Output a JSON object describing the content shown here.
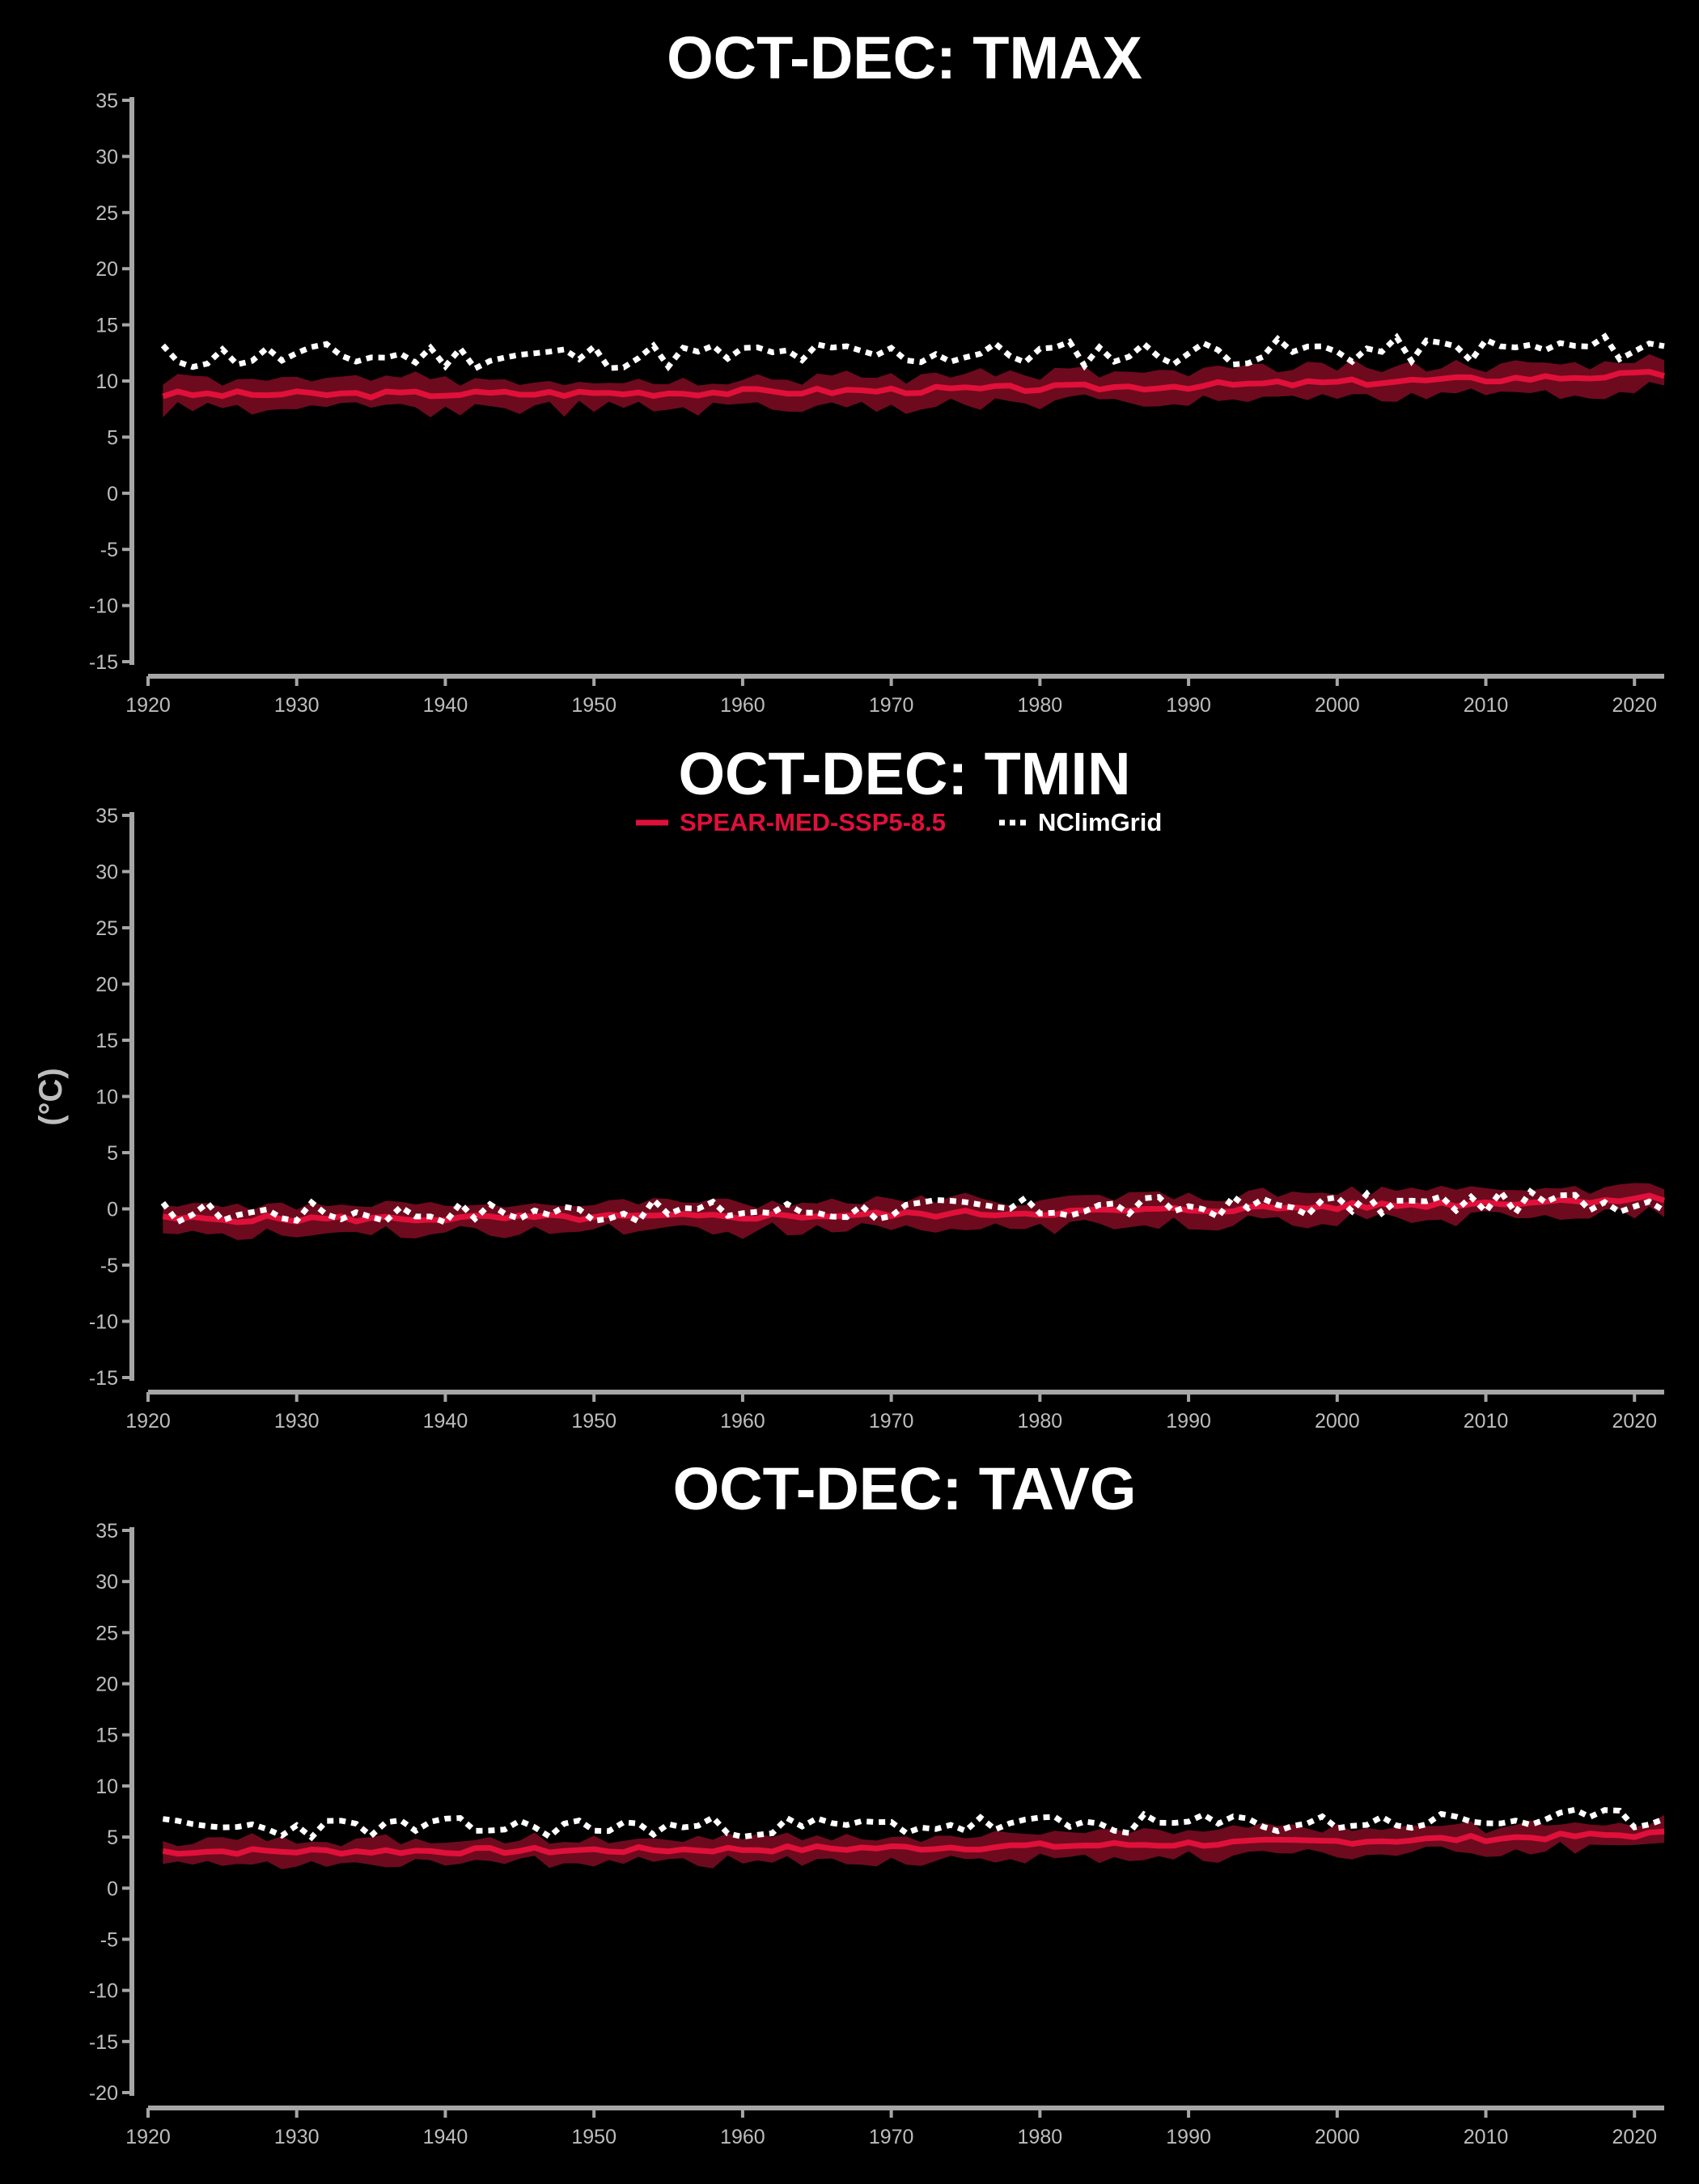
{
  "figure": {
    "ylabel": "(°C)",
    "legend": {
      "placement": "top-center of middle panel",
      "items": [
        {
          "label": "SPEAR-MED-SSP5-8.5",
          "style": "solid",
          "color": "#e0103a"
        },
        {
          "label": "NClimGrid",
          "style": "dotted",
          "color": "#ffffff"
        }
      ]
    },
    "colors": {
      "background": "#000000",
      "axis": "#a6a6a6",
      "model_line": "#e0103a",
      "model_band": "#6e0a1e",
      "observed": "#ffffff"
    }
  },
  "chart_data": [
    {
      "type": "line",
      "title": "OCT-DEC: TMAX",
      "xlim": [
        1920,
        2022
      ],
      "ylim": [
        -15,
        35
      ],
      "yticks": [
        "-15",
        "-10",
        "-5",
        "0",
        "5",
        "10",
        "15",
        "20",
        "25",
        "30",
        "35"
      ],
      "xticks": [
        "1920",
        "1930",
        "1940",
        "1950",
        "1960",
        "1970",
        "1980",
        "1990",
        "2000",
        "2010",
        "2020"
      ],
      "grid": false,
      "series": [
        {
          "name": "SPEAR-MED-SSP5-8.5",
          "type": "line-with-band",
          "x_start": 1921,
          "x_end": 2022,
          "start_value": 8.8,
          "end_value": 10.6,
          "band_halfwidth": 1.3,
          "noise_seed": 3
        },
        {
          "name": "NClimGrid",
          "type": "dotted-line",
          "x_start": 1921,
          "x_end": 2022,
          "start_value": 12.2,
          "end_value": 13.0,
          "variability": 1.2,
          "noise_seed": 11
        }
      ]
    },
    {
      "type": "line",
      "title": "OCT-DEC: TMIN",
      "xlim": [
        1920,
        2022
      ],
      "ylim": [
        -15,
        35
      ],
      "yticks": [
        "-15",
        "-10",
        "-5",
        "0",
        "5",
        "10",
        "15",
        "20",
        "25",
        "30",
        "35"
      ],
      "xticks": [
        "1920",
        "1930",
        "1940",
        "1950",
        "1960",
        "1970",
        "1980",
        "1990",
        "2000",
        "2010",
        "2020"
      ],
      "grid": false,
      "series": [
        {
          "name": "SPEAR-MED-SSP5-8.5",
          "type": "line-with-band",
          "x_start": 1921,
          "x_end": 2022,
          "start_value": -0.9,
          "end_value": 1.0,
          "band_halfwidth": 1.2,
          "noise_seed": 5
        },
        {
          "name": "NClimGrid",
          "type": "dotted-line",
          "x_start": 1921,
          "x_end": 2022,
          "start_value": -0.3,
          "end_value": 0.8,
          "variability": 1.0,
          "noise_seed": 17
        }
      ]
    },
    {
      "type": "line",
      "title": "OCT-DEC: TAVG",
      "xlim": [
        1920,
        2022
      ],
      "ylim": [
        -20,
        35
      ],
      "yticks": [
        "-20",
        "-15",
        "-10",
        "-5",
        "0",
        "5",
        "10",
        "15",
        "20",
        "25",
        "30",
        "35"
      ],
      "xticks": [
        "1920",
        "1930",
        "1940",
        "1950",
        "1960",
        "1970",
        "1980",
        "1990",
        "2000",
        "2010",
        "2020"
      ],
      "grid": false,
      "series": [
        {
          "name": "SPEAR-MED-SSP5-8.5",
          "type": "line-with-band",
          "x_start": 1921,
          "x_end": 2022,
          "start_value": 3.6,
          "end_value": 5.3,
          "band_halfwidth": 1.2,
          "noise_seed": 7
        },
        {
          "name": "NClimGrid",
          "type": "dotted-line",
          "x_start": 1921,
          "x_end": 2022,
          "start_value": 5.9,
          "end_value": 6.8,
          "variability": 1.0,
          "noise_seed": 23
        }
      ]
    }
  ]
}
